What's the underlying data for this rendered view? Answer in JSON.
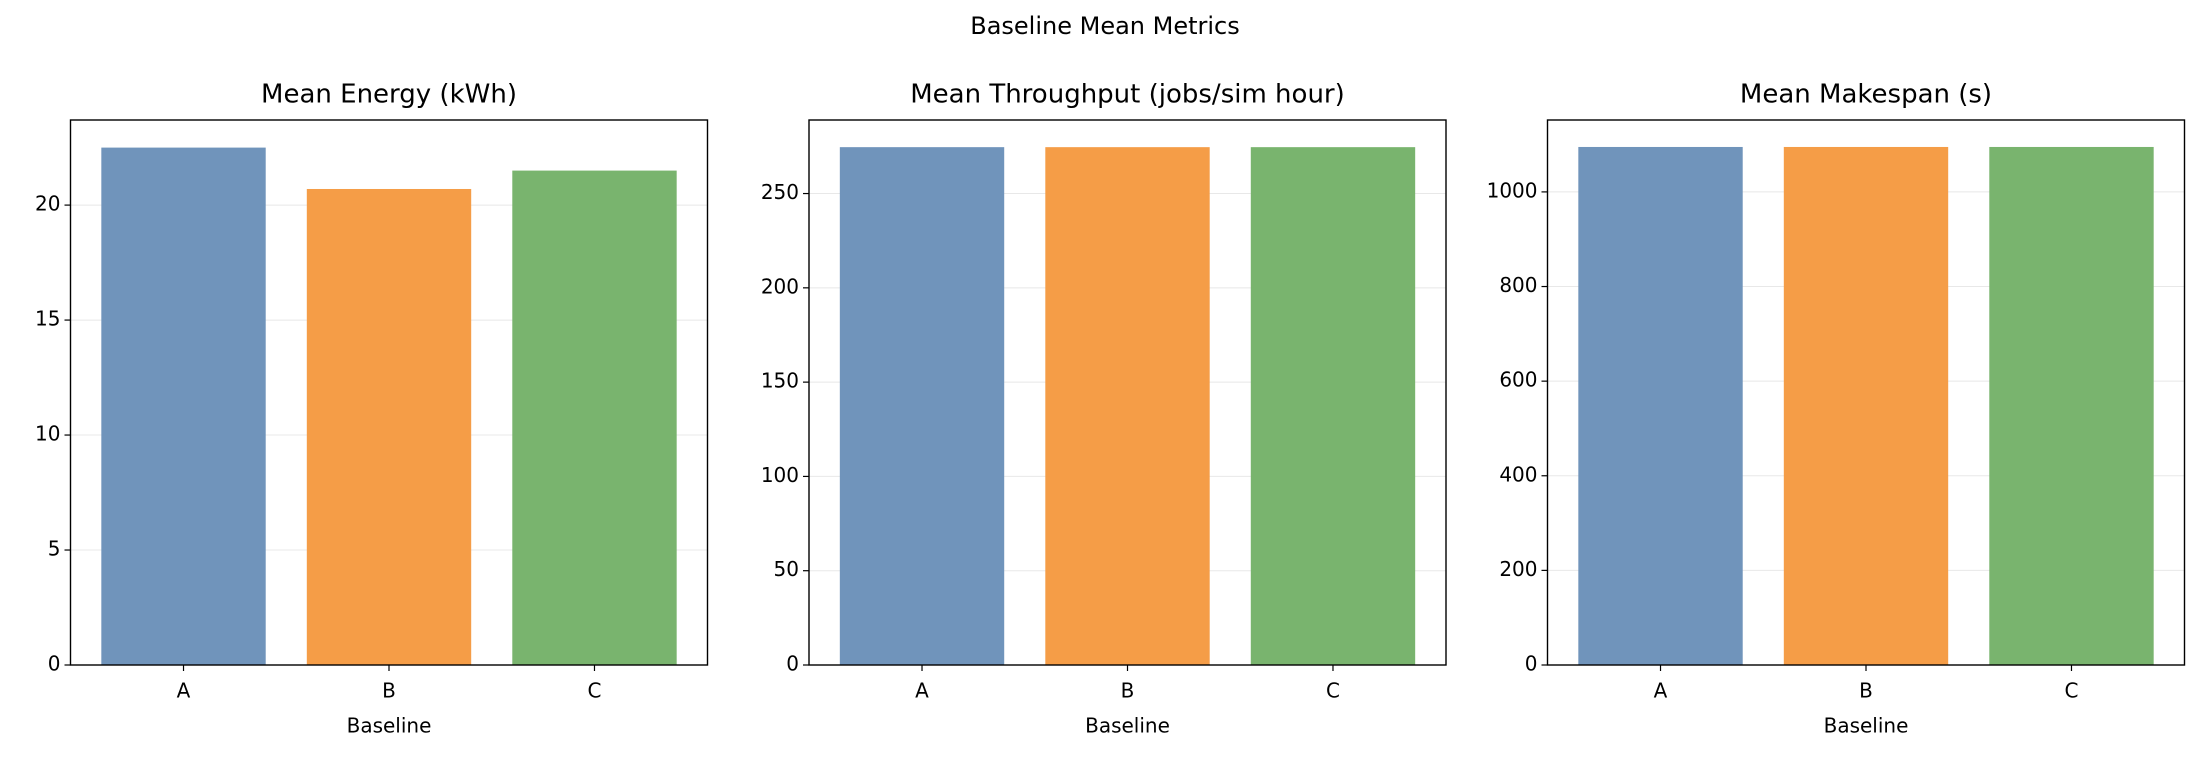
{
  "title": "Baseline Mean Metrics",
  "chart_data": [
    {
      "type": "bar",
      "title": "Mean Energy (kWh)",
      "xlabel": "Baseline",
      "categories": [
        "A",
        "B",
        "C"
      ],
      "values": [
        22.5,
        20.7,
        21.5
      ],
      "colors": [
        "#7094bb",
        "#f59d47",
        "#79b46e"
      ],
      "ylim": [
        0,
        23.7
      ],
      "yticks": [
        0,
        5,
        10,
        15,
        20
      ],
      "grid": true
    },
    {
      "type": "bar",
      "title": "Mean Throughput (jobs/sim hour)",
      "xlabel": "Baseline",
      "categories": [
        "A",
        "B",
        "C"
      ],
      "values": [
        274.6,
        274.6,
        274.6
      ],
      "colors": [
        "#7094bb",
        "#f59d47",
        "#79b46e"
      ],
      "ylim": [
        0,
        289
      ],
      "yticks": [
        0,
        50,
        100,
        150,
        200,
        250
      ],
      "grid": true
    },
    {
      "type": "bar",
      "title": "Mean Makespan (s)",
      "xlabel": "Baseline",
      "categories": [
        "A",
        "B",
        "C"
      ],
      "values": [
        1095,
        1095,
        1095
      ],
      "colors": [
        "#7094bb",
        "#f59d47",
        "#79b46e"
      ],
      "ylim": [
        0,
        1152
      ],
      "yticks": [
        0,
        200,
        400,
        600,
        800,
        1000
      ],
      "grid": true
    }
  ]
}
